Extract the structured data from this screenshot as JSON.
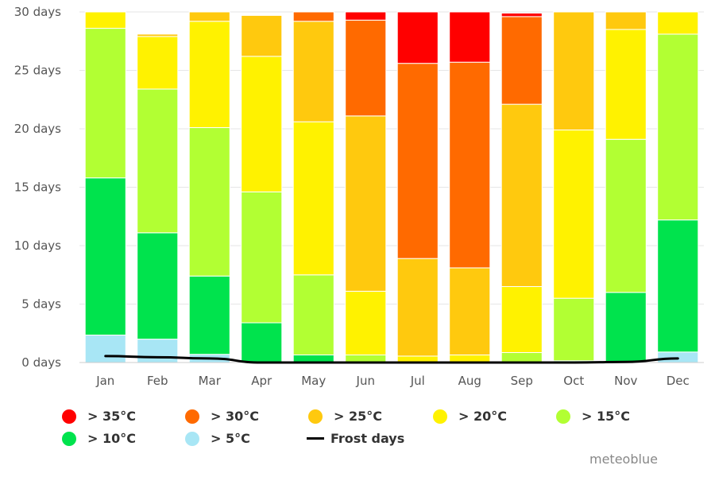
{
  "chart_data": {
    "type": "bar",
    "stacked": true,
    "title": "",
    "xlabel": "",
    "ylabel": "",
    "ylim": [
      0,
      30
    ],
    "y_ticks": [
      0,
      5,
      10,
      15,
      20,
      25,
      30
    ],
    "y_tick_labels": [
      "0 days",
      "5 days",
      "10 days",
      "15 days",
      "20 days",
      "25 days",
      "30 days"
    ],
    "grid": true,
    "legend_position": "bottom",
    "categories": [
      "Jan",
      "Feb",
      "Mar",
      "Apr",
      "May",
      "Jun",
      "Jul",
      "Aug",
      "Sep",
      "Oct",
      "Nov",
      "Dec"
    ],
    "series": [
      {
        "name": "> 5°C",
        "color": "#a8e6f5",
        "values": [
          2.35,
          2.0,
          0.7,
          0,
          0,
          0,
          0,
          0,
          0,
          0,
          0.05,
          0.9
        ]
      },
      {
        "name": "> 10°C",
        "color": "#00e34d",
        "values": [
          13.45,
          9.1,
          6.7,
          3.4,
          0.65,
          0,
          0,
          0,
          0,
          0.15,
          5.95,
          11.3
        ]
      },
      {
        "name": "> 15°C",
        "color": "#b2ff33",
        "values": [
          12.8,
          12.3,
          12.7,
          11.2,
          6.85,
          0.65,
          0,
          0,
          0.85,
          5.35,
          13.1,
          15.9
        ]
      },
      {
        "name": "> 20°C",
        "color": "#fff200",
        "values": [
          1.4,
          4.5,
          9.1,
          11.6,
          13.1,
          5.45,
          0.55,
          0.65,
          5.65,
          14.4,
          9.4,
          1.9
        ]
      },
      {
        "name": "> 25°C",
        "color": "#ffc90e",
        "values": [
          0,
          0.2,
          0.8,
          3.5,
          8.6,
          15.0,
          8.35,
          7.45,
          15.6,
          10.1,
          1.5,
          0
        ]
      },
      {
        "name": "> 30°C",
        "color": "#ff6a00",
        "values": [
          0,
          0,
          0,
          0,
          0.8,
          8.2,
          16.7,
          17.6,
          7.5,
          0,
          0,
          0
        ]
      },
      {
        "name": "> 35°C",
        "color": "#ff0000",
        "values": [
          0,
          0,
          0,
          0,
          0,
          0.7,
          4.4,
          4.3,
          0.3,
          0,
          0,
          0
        ]
      }
    ],
    "line_series": {
      "name": "Frost days",
      "color": "#000000",
      "values": [
        0.55,
        0.45,
        0.35,
        0,
        0,
        0,
        0,
        0,
        0,
        0,
        0.05,
        0.35
      ]
    }
  },
  "legend": [
    {
      "label": "> 35°C",
      "color": "#ff0000",
      "kind": "dot"
    },
    {
      "label": "> 30°C",
      "color": "#ff6a00",
      "kind": "dot"
    },
    {
      "label": "> 25°C",
      "color": "#ffc90e",
      "kind": "dot"
    },
    {
      "label": "> 20°C",
      "color": "#fff200",
      "kind": "dot"
    },
    {
      "label": "> 15°C",
      "color": "#b2ff33",
      "kind": "dot"
    },
    {
      "label": "> 10°C",
      "color": "#00e34d",
      "kind": "dot"
    },
    {
      "label": "> 5°C",
      "color": "#a8e6f5",
      "kind": "dot"
    },
    {
      "label": "Frost days",
      "color": "#000000",
      "kind": "line"
    }
  ],
  "credit": "meteoblue"
}
